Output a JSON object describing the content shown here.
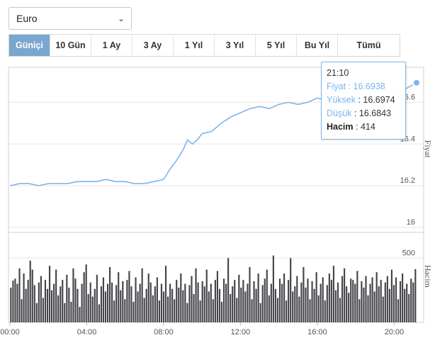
{
  "currency_select": {
    "value": "Euro"
  },
  "tabs": [
    {
      "label": "Güniçi",
      "active": true
    },
    {
      "label": "10 Gün",
      "active": false
    },
    {
      "label": "1 Ay",
      "active": false
    },
    {
      "label": "3 Ay",
      "active": false
    },
    {
      "label": "1 Yıl",
      "active": false
    },
    {
      "label": "3 Yıl",
      "active": false
    },
    {
      "label": "5 Yıl",
      "active": false
    },
    {
      "label": "Bu Yıl",
      "active": false
    },
    {
      "label": "Tümü",
      "active": false
    }
  ],
  "tooltip": {
    "time": "21:10",
    "price_label": "Fiyat",
    "price_value": "16.6938",
    "high_label": "Yüksek",
    "high_value": "16.6974",
    "low_label": "Düşük",
    "low_value": "16.6843",
    "volume_label": "Hacim",
    "volume_value": "414"
  },
  "colors": {
    "line": "#7cb5ec",
    "volume_bar": "#434348",
    "active_tab": "#7aa6cf",
    "grid": "#e6e6e6"
  },
  "chart_data": [
    {
      "type": "line",
      "title": "",
      "ylabel": "Fiyat",
      "ylim": [
        16.0,
        16.7
      ],
      "yticks": [
        16,
        16.2,
        16.4,
        16.6
      ],
      "ytick_labels": [
        "16",
        "16.2",
        "16.4",
        "16.6"
      ],
      "grid": true,
      "points": [
        [
          "00:00",
          16.2
        ],
        [
          "00:30",
          16.21
        ],
        [
          "01:00",
          16.21
        ],
        [
          "01:30",
          16.2
        ],
        [
          "02:00",
          16.21
        ],
        [
          "02:30",
          16.21
        ],
        [
          "03:00",
          16.21
        ],
        [
          "03:30",
          16.22
        ],
        [
          "04:00",
          16.22
        ],
        [
          "04:30",
          16.22
        ],
        [
          "05:00",
          16.23
        ],
        [
          "05:30",
          16.22
        ],
        [
          "06:00",
          16.22
        ],
        [
          "06:30",
          16.21
        ],
        [
          "07:00",
          16.21
        ],
        [
          "07:30",
          16.22
        ],
        [
          "08:00",
          16.23
        ],
        [
          "08:20",
          16.28
        ],
        [
          "08:40",
          16.32
        ],
        [
          "09:00",
          16.37
        ],
        [
          "09:15",
          16.42
        ],
        [
          "09:30",
          16.4
        ],
        [
          "09:45",
          16.42
        ],
        [
          "10:00",
          16.45
        ],
        [
          "10:30",
          16.46
        ],
        [
          "11:00",
          16.5
        ],
        [
          "11:30",
          16.53
        ],
        [
          "12:00",
          16.55
        ],
        [
          "12:30",
          16.57
        ],
        [
          "13:00",
          16.58
        ],
        [
          "13:30",
          16.57
        ],
        [
          "14:00",
          16.59
        ],
        [
          "14:30",
          16.6
        ],
        [
          "15:00",
          16.59
        ],
        [
          "15:30",
          16.6
        ],
        [
          "16:00",
          16.62
        ],
        [
          "16:30",
          16.61
        ],
        [
          "17:00",
          16.6
        ],
        [
          "17:30",
          16.61
        ],
        [
          "18:00",
          16.6
        ],
        [
          "18:30",
          16.62
        ],
        [
          "19:00",
          16.63
        ],
        [
          "19:30",
          16.62
        ],
        [
          "20:00",
          16.63
        ],
        [
          "20:30",
          16.66
        ],
        [
          "21:10",
          16.6938
        ]
      ]
    },
    {
      "type": "bar",
      "title": "",
      "ylabel": "Hacim",
      "ylim": [
        0,
        700
      ],
      "yticks": [
        500
      ],
      "ytick_labels": [
        "500"
      ],
      "x_range_hours": [
        0,
        21.1667
      ],
      "xtick_labels": [
        "00:00",
        "04:00",
        "08:00",
        "12:00",
        "16:00",
        "20:00"
      ],
      "values": [
        270,
        325,
        340,
        300,
        420,
        180,
        380,
        260,
        330,
        480,
        410,
        290,
        150,
        310,
        360,
        190,
        330,
        260,
        440,
        250,
        300,
        410,
        210,
        280,
        330,
        150,
        370,
        270,
        160,
        420,
        340,
        260,
        120,
        300,
        390,
        450,
        220,
        310,
        200,
        260,
        370,
        140,
        280,
        350,
        240,
        300,
        430,
        310,
        170,
        290,
        390,
        250,
        320,
        180,
        330,
        400,
        280,
        160,
        350,
        240,
        300,
        420,
        190,
        260,
        380,
        310,
        210,
        280,
        350,
        170,
        300,
        240,
        440,
        200,
        300,
        260,
        180,
        330,
        270,
        380,
        250,
        300,
        150,
        290,
        360,
        220,
        420,
        310,
        170,
        320,
        280,
        410,
        240,
        300,
        180,
        330,
        400,
        260,
        160,
        340,
        300,
        500,
        220,
        280,
        330,
        190,
        370,
        270,
        330,
        240,
        300,
        430,
        180,
        320,
        260,
        380,
        150,
        290,
        340,
        410,
        210,
        300,
        520,
        260,
        190,
        340,
        300,
        380,
        170,
        330,
        500,
        240,
        280,
        360,
        200,
        310,
        430,
        270,
        340,
        180,
        320,
        260,
        390,
        210,
        300,
        350,
        170,
        290,
        380,
        330,
        440,
        250,
        310,
        190,
        360,
        420,
        280,
        230,
        340,
        330,
        300,
        400,
        180,
        320,
        270,
        360,
        210,
        300,
        350,
        240,
        390,
        280,
        330,
        200,
        310,
        360,
        260,
        410,
        290,
        350,
        180,
        320,
        380,
        260,
        300,
        220,
        340,
        310,
        414
      ]
    }
  ]
}
